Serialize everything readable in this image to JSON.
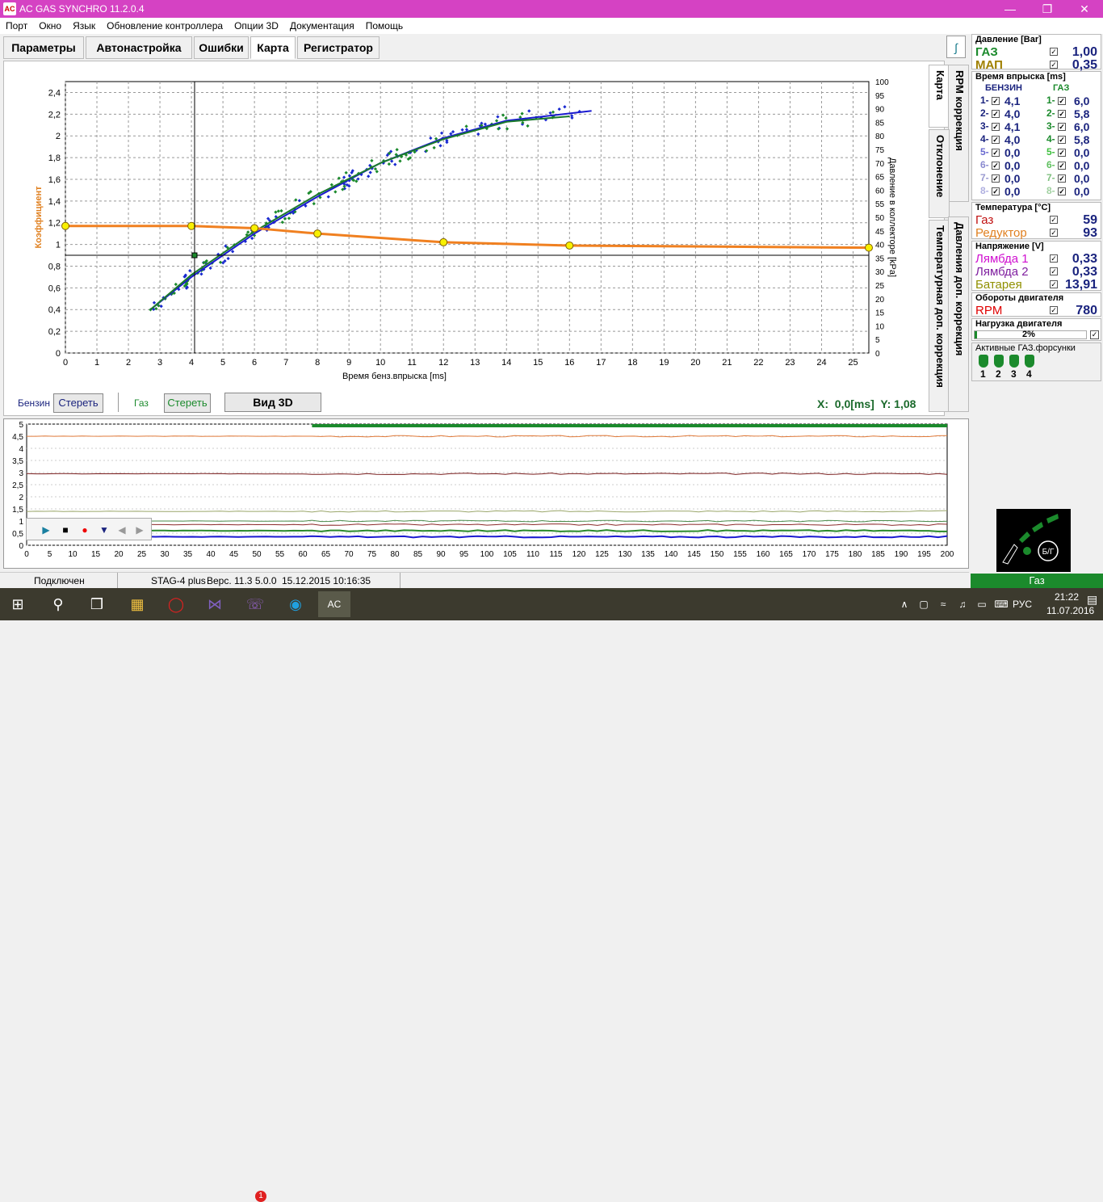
{
  "window": {
    "title": "AC GAS SYNCHRO  11.2.0.4",
    "app_icon": "AC"
  },
  "menu": [
    "Порт",
    "Окно",
    "Язык",
    "Обновление контроллера",
    "Опции 3D",
    "Документация",
    "Помощь"
  ],
  "tabs": [
    "Параметры",
    "Автонастройка",
    "Ошибки",
    "Карта",
    "Регистратор"
  ],
  "side_tabs": {
    "karta": "Карта",
    "rpm": "RPM коррекция",
    "otkl": "Отклонение",
    "temp": "Температурная доп. коррекция",
    "press": "Давления доп. коррекция"
  },
  "chart_data": {
    "type": "scatter",
    "xlabel": "Время бенз.впрыска [ms]",
    "ylabel_left": "Коэффициент",
    "ylabel_right": "Давление в коллекторе [kPa]",
    "xlim": [
      0,
      25.5
    ],
    "ylim_left": [
      0,
      2.5
    ],
    "ylim_right": [
      0,
      100
    ],
    "x_ticks": [
      "0",
      "1",
      "2",
      "3",
      "4",
      "5",
      "6",
      "7",
      "8",
      "9",
      "10",
      "11",
      "12",
      "13",
      "14",
      "15",
      "16",
      "17",
      "18",
      "19",
      "20",
      "21",
      "22",
      "23",
      "24",
      "25"
    ],
    "y_ticks_left": [
      "0",
      "0,2",
      "0,4",
      "0,6",
      "0,8",
      "1",
      "1,2",
      "1,4",
      "1,6",
      "1,8",
      "2",
      "2,2",
      "2,4"
    ],
    "y_ticks_right": [
      "0",
      "5",
      "10",
      "15",
      "20",
      "25",
      "30",
      "35",
      "40",
      "45",
      "50",
      "55",
      "60",
      "65",
      "70",
      "75",
      "80",
      "85",
      "90",
      "95",
      "100"
    ],
    "coef_line": {
      "name": "Коэффициент",
      "x": [
        0,
        4,
        6,
        8,
        12,
        16,
        25.5
      ],
      "y": [
        1.17,
        1.17,
        1.15,
        1.1,
        1.02,
        0.99,
        0.97
      ]
    },
    "benzin_curve": {
      "name": "Бензин",
      "x": [
        2.7,
        4,
        6,
        8,
        10,
        12,
        14,
        16.7
      ],
      "y": [
        0.4,
        0.7,
        1.1,
        1.44,
        1.75,
        1.98,
        2.14,
        2.23
      ]
    },
    "gaz_curve": {
      "name": "Газ",
      "x": [
        2.7,
        4,
        6,
        8,
        10,
        12,
        14,
        16
      ],
      "y": [
        0.4,
        0.72,
        1.12,
        1.46,
        1.75,
        1.97,
        2.13,
        2.18
      ]
    },
    "cursor": {
      "x": 4.1,
      "y": 0.9
    }
  },
  "controls": {
    "benzin_label": "Бензин",
    "clear1": "Стереть",
    "gaz_label": "Газ",
    "clear2": "Стереть",
    "view3d": "Вид 3D",
    "coords": "X:  0,0[ms]  Y: 1,08"
  },
  "lower_chart": {
    "y_ticks": [
      "0",
      "0,5",
      "1",
      "1,5",
      "2",
      "2,5",
      "3",
      "3,5",
      "4",
      "4,5",
      "5"
    ],
    "x_ticks": [
      "0",
      "5",
      "10",
      "15",
      "20",
      "25",
      "30",
      "35",
      "40",
      "45",
      "50",
      "55",
      "60",
      "65",
      "70",
      "75",
      "80",
      "85",
      "90",
      "95",
      "100",
      "105",
      "110",
      "115",
      "120",
      "125",
      "130",
      "135",
      "140",
      "145",
      "150",
      "155",
      "160",
      "165",
      "170",
      "175",
      "180",
      "185",
      "190",
      "195",
      "200"
    ],
    "xlim": [
      0,
      200
    ],
    "ylim": [
      0,
      5
    ],
    "series": [
      {
        "color": "#e07a3a",
        "level": 4.5
      },
      {
        "color": "#7a1e1e",
        "level": 2.95
      },
      {
        "color": "#9aa66a",
        "level": 1.4
      },
      {
        "color": "#4a8a4a",
        "level": 1.0
      },
      {
        "color": "#8b2a2a",
        "level": 0.85
      },
      {
        "color": "#2a8a2a",
        "level": 0.6
      },
      {
        "color": "#1a1ad0",
        "level": 0.35
      }
    ]
  },
  "status": {
    "connected": "Подключен",
    "device": "STAG-4 plus",
    "version": "Верс. 11.3  5.0.0",
    "date": "15.12.2015 10:16:35"
  },
  "right": {
    "pressure": {
      "title": "Давление [Bar]",
      "gaz_label": "ГАЗ",
      "gaz_val": "1,00",
      "map_label": "МАП",
      "map_val": "0,35"
    },
    "inj_time": {
      "title": "Время впрыска [ms]",
      "benzin": "БЕНЗИН",
      "gaz": "ГАЗ",
      "rows": [
        {
          "n": "1-",
          "b": "4,1",
          "g": "6,0"
        },
        {
          "n": "2-",
          "b": "4,0",
          "g": "5,8"
        },
        {
          "n": "3-",
          "b": "4,1",
          "g": "6,0"
        },
        {
          "n": "4-",
          "b": "4,0",
          "g": "5,8"
        },
        {
          "n": "5-",
          "b": "0,0",
          "g": "0,0"
        },
        {
          "n": "6-",
          "b": "0,0",
          "g": "0,0"
        },
        {
          "n": "7-",
          "b": "0,0",
          "g": "0,0"
        },
        {
          "n": "8-",
          "b": "0,0",
          "g": "0,0"
        }
      ]
    },
    "temp": {
      "title": "Температура  [°C]",
      "gaz_label": "Газ",
      "gaz_val": "59",
      "red_label": "Редуктор",
      "red_val": "93"
    },
    "voltage": {
      "title": "Напряжение [V]",
      "l1": "Лямбда 1",
      "l1v": "0,33",
      "l2": "Лямбда 2",
      "l2v": "0,33",
      "bat": "Батарея",
      "batv": "13,91"
    },
    "rpm": {
      "title": "Обороты двигателя",
      "label": "RPM",
      "val": "780"
    },
    "load": {
      "title": "Нагрузка двигателя",
      "val": "2%",
      "fraction": 0.02
    },
    "injectors": {
      "title": "Активные ГАЗ.форсунки",
      "nums": [
        "1",
        "2",
        "3",
        "4"
      ]
    },
    "mode": "Газ",
    "switch_label": "Б/Г"
  },
  "taskbar": {
    "lang": "РУС",
    "time": "21:22",
    "date": "11.07.2016",
    "badge": "1"
  }
}
